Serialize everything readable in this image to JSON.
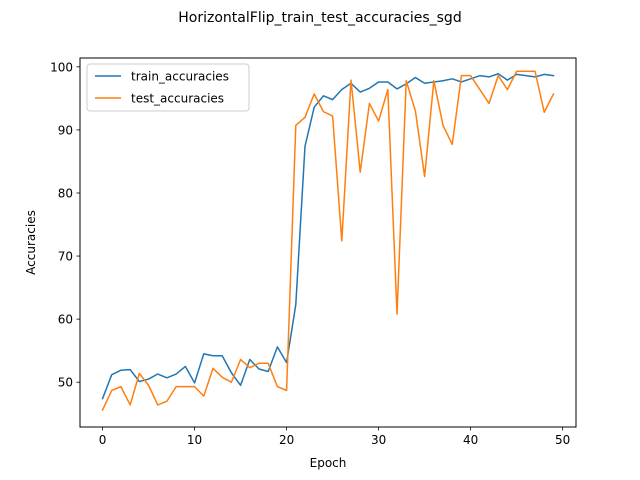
{
  "chart_data": {
    "type": "line",
    "title": "HorizontalFlip_train_test_accuracies_sgd",
    "xlabel": "Epoch",
    "ylabel": "Accuracies",
    "xlim": [
      -2.45,
      51.45
    ],
    "ylim": [
      42.9,
      101.4
    ],
    "x_ticks": [
      0,
      10,
      20,
      30,
      40,
      50
    ],
    "y_ticks": [
      50,
      60,
      70,
      80,
      90,
      100
    ],
    "grid": false,
    "legend_position": "upper left",
    "x": [
      0,
      1,
      2,
      3,
      4,
      5,
      6,
      7,
      8,
      9,
      10,
      11,
      12,
      13,
      14,
      15,
      16,
      17,
      18,
      19,
      20,
      21,
      22,
      23,
      24,
      25,
      26,
      27,
      28,
      29,
      30,
      31,
      32,
      33,
      34,
      35,
      36,
      37,
      38,
      39,
      40,
      41,
      42,
      43,
      44,
      45,
      46,
      47,
      48,
      49
    ],
    "series": [
      {
        "name": "train_accuracies",
        "color": "#1f77b4",
        "values": [
          47.4,
          51.2,
          51.9,
          52.0,
          50.1,
          50.5,
          51.3,
          50.7,
          51.3,
          52.5,
          49.9,
          54.5,
          54.2,
          54.2,
          51.5,
          49.5,
          53.6,
          52.1,
          51.7,
          55.6,
          53.1,
          62.3,
          87.4,
          93.6,
          95.4,
          94.8,
          96.4,
          97.4,
          96.0,
          96.6,
          97.6,
          97.6,
          96.5,
          97.3,
          98.3,
          97.4,
          97.6,
          97.8,
          98.1,
          97.6,
          98.1,
          98.6,
          98.4,
          98.9,
          97.9,
          98.8,
          98.6,
          98.4,
          98.8,
          98.6
        ]
      },
      {
        "name": "test_accuracies",
        "color": "#ff7f0e",
        "values": [
          45.6,
          48.7,
          49.3,
          46.4,
          51.4,
          49.5,
          46.4,
          47.0,
          49.3,
          49.3,
          49.3,
          47.8,
          52.2,
          50.8,
          50.0,
          53.6,
          52.3,
          53.0,
          53.0,
          49.3,
          48.7,
          90.7,
          92.0,
          95.7,
          92.9,
          92.2,
          72.4,
          97.9,
          83.3,
          94.2,
          91.4,
          96.4,
          60.8,
          97.8,
          93.0,
          82.6,
          97.8,
          90.7,
          87.7,
          98.6,
          98.6,
          96.4,
          94.2,
          98.6,
          96.4,
          99.3,
          99.3,
          99.3,
          92.8,
          95.7
        ]
      }
    ]
  }
}
